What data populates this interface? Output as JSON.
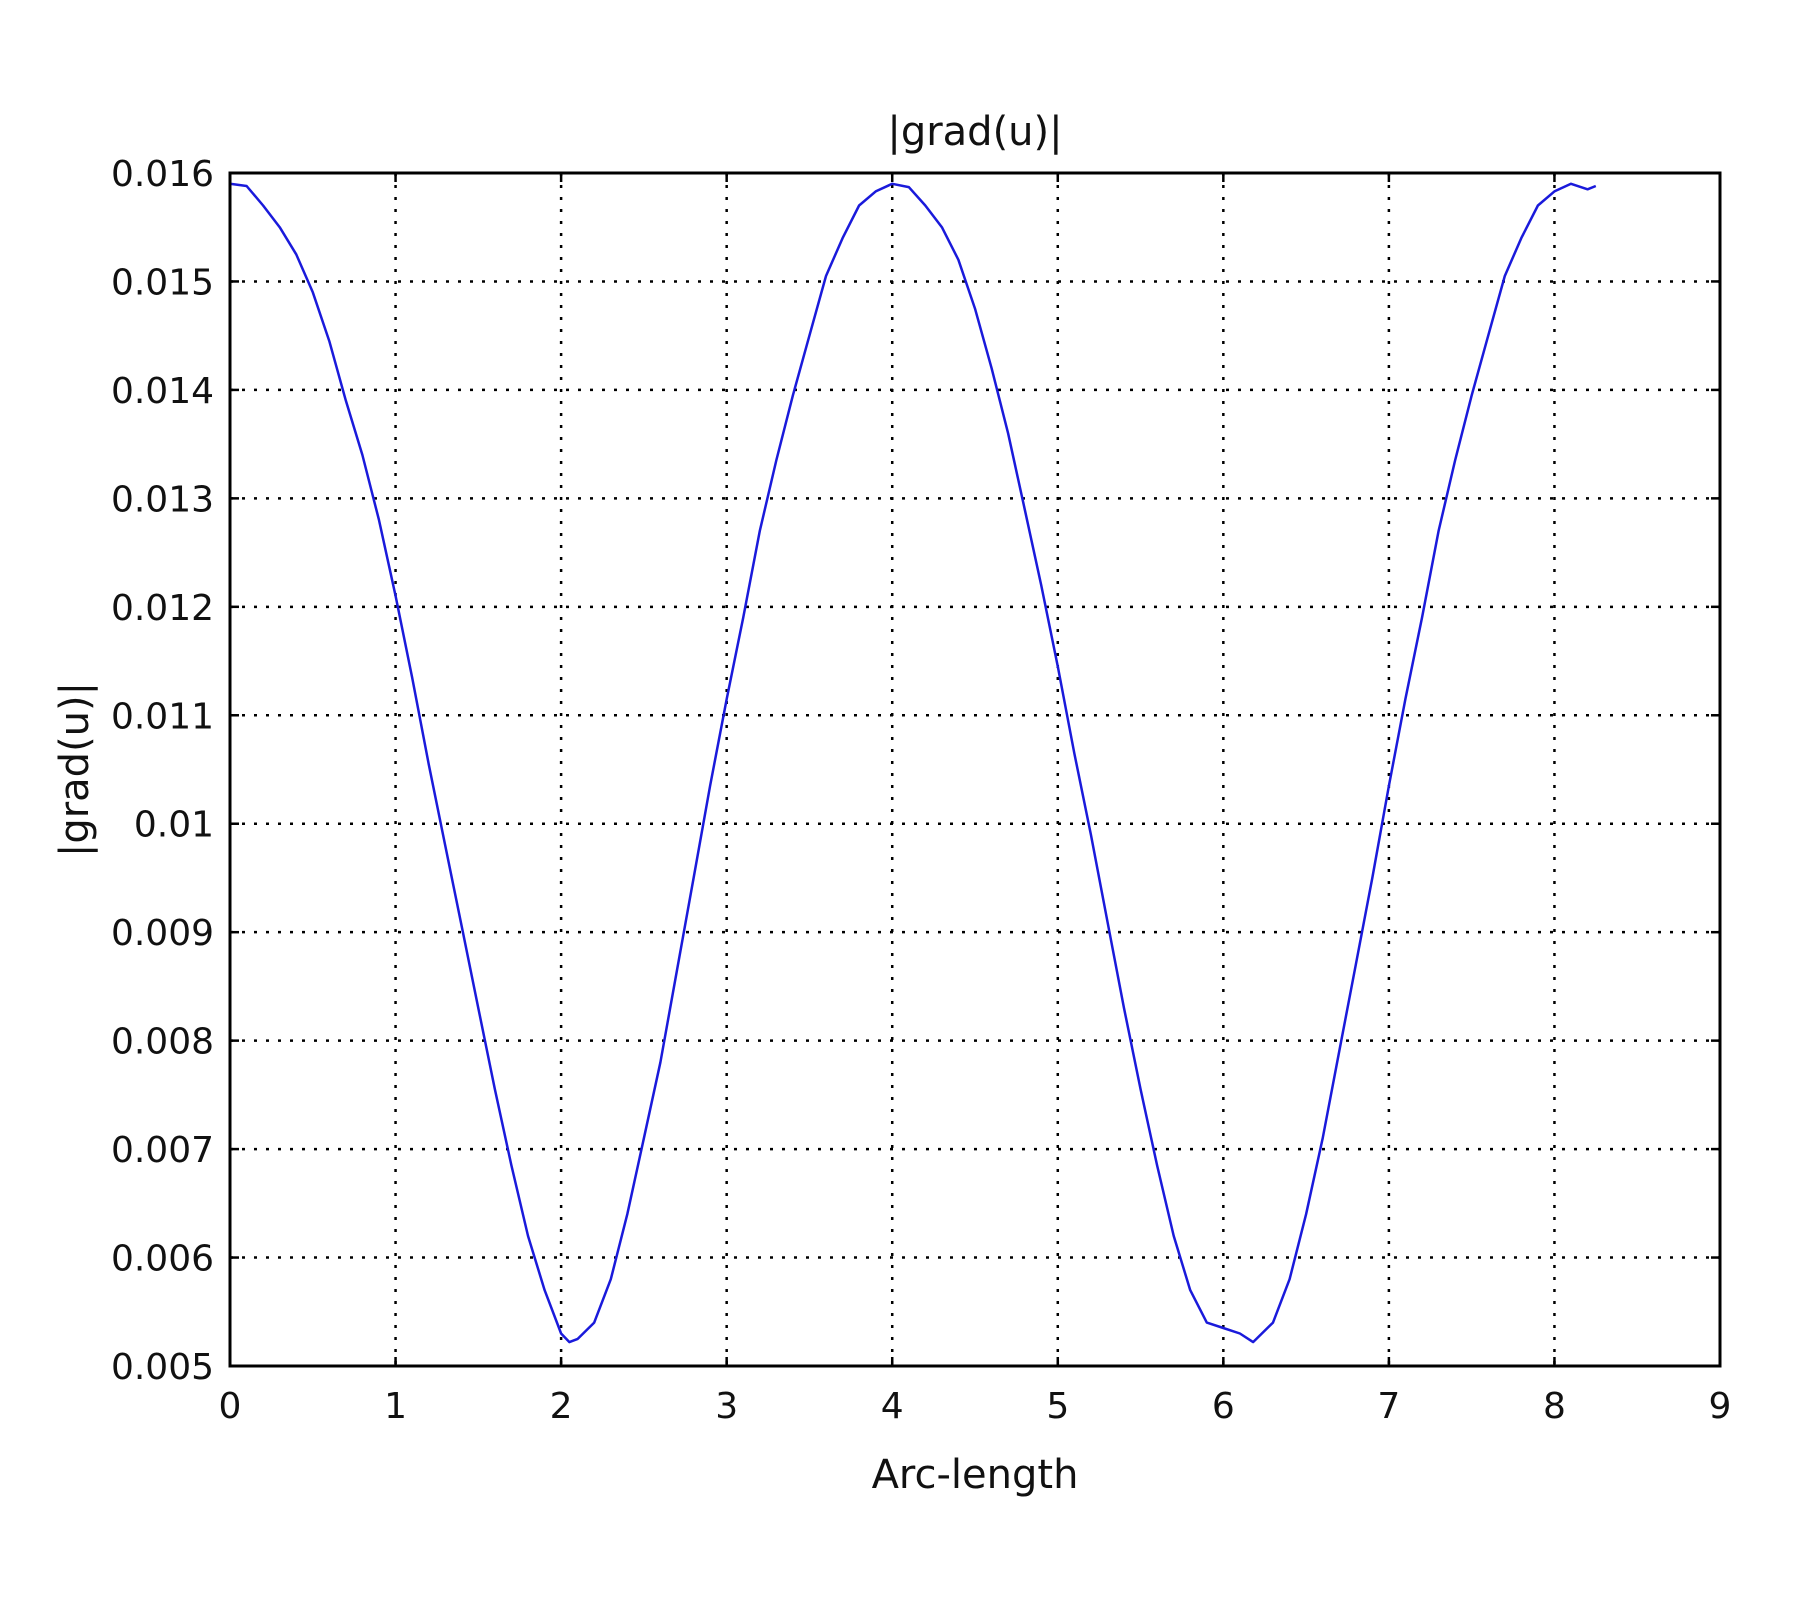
{
  "chart_data": {
    "type": "line",
    "title": "|grad(u)|",
    "xlabel": "Arc-length",
    "ylabel": "|grad(u)|",
    "xlim": [
      0,
      9
    ],
    "ylim": [
      0.005,
      0.016
    ],
    "xticks": [
      "0",
      "1",
      "2",
      "3",
      "4",
      "5",
      "6",
      "7",
      "8",
      "9"
    ],
    "yticks": [
      "0.005",
      "0.006",
      "0.007",
      "0.008",
      "0.009",
      "0.01",
      "0.011",
      "0.012",
      "0.013",
      "0.014",
      "0.015",
      "0.016"
    ],
    "grid": true,
    "series": [
      {
        "color": "#1a1adb",
        "x": [
          0.0,
          0.1,
          0.2,
          0.3,
          0.4,
          0.5,
          0.6,
          0.7,
          0.8,
          0.9,
          1.0,
          1.1,
          1.2,
          1.3,
          1.4,
          1.5,
          1.6,
          1.7,
          1.8,
          1.9,
          2.0,
          2.05,
          2.1,
          2.2,
          2.3,
          2.4,
          2.5,
          2.6,
          2.7,
          2.8,
          2.9,
          3.0,
          3.1,
          3.2,
          3.3,
          3.4,
          3.5,
          3.6,
          3.7,
          3.8,
          3.9,
          4.0,
          4.1,
          4.2,
          4.3,
          4.4,
          4.5,
          4.6,
          4.7,
          4.8,
          4.9,
          5.0,
          5.1,
          5.2,
          5.3,
          5.4,
          5.5,
          5.6,
          5.7,
          5.8,
          5.9,
          6.0,
          6.1,
          6.18,
          6.3,
          6.4,
          6.5,
          6.6,
          6.7,
          6.8,
          6.9,
          7.0,
          7.1,
          7.2,
          7.3,
          7.4,
          7.5,
          7.6,
          7.7,
          7.8,
          7.9,
          8.0,
          8.1,
          8.2,
          8.25
        ],
        "y": [
          0.0159,
          0.01588,
          0.0157,
          0.0155,
          0.01525,
          0.0149,
          0.01445,
          0.0139,
          0.0134,
          0.0128,
          0.0121,
          0.01135,
          0.01055,
          0.0098,
          0.00905,
          0.0083,
          0.00755,
          0.00685,
          0.0062,
          0.0057,
          0.0053,
          0.00522,
          0.00525,
          0.0054,
          0.0058,
          0.0064,
          0.0071,
          0.0078,
          0.00865,
          0.0095,
          0.01035,
          0.01115,
          0.0119,
          0.0127,
          0.01335,
          0.01395,
          0.0145,
          0.01505,
          0.0154,
          0.0157,
          0.01583,
          0.0159,
          0.01587,
          0.0157,
          0.0155,
          0.0152,
          0.01475,
          0.0142,
          0.0136,
          0.0129,
          0.0122,
          0.01145,
          0.01065,
          0.0099,
          0.0091,
          0.0083,
          0.00755,
          0.00685,
          0.0062,
          0.0057,
          0.0054,
          0.00535,
          0.0053,
          0.00522,
          0.0054,
          0.0058,
          0.0064,
          0.0071,
          0.0079,
          0.0087,
          0.0095,
          0.01035,
          0.01115,
          0.0119,
          0.0127,
          0.01335,
          0.01395,
          0.0145,
          0.01505,
          0.0154,
          0.0157,
          0.01583,
          0.0159,
          0.01585,
          0.01588
        ]
      }
    ]
  }
}
